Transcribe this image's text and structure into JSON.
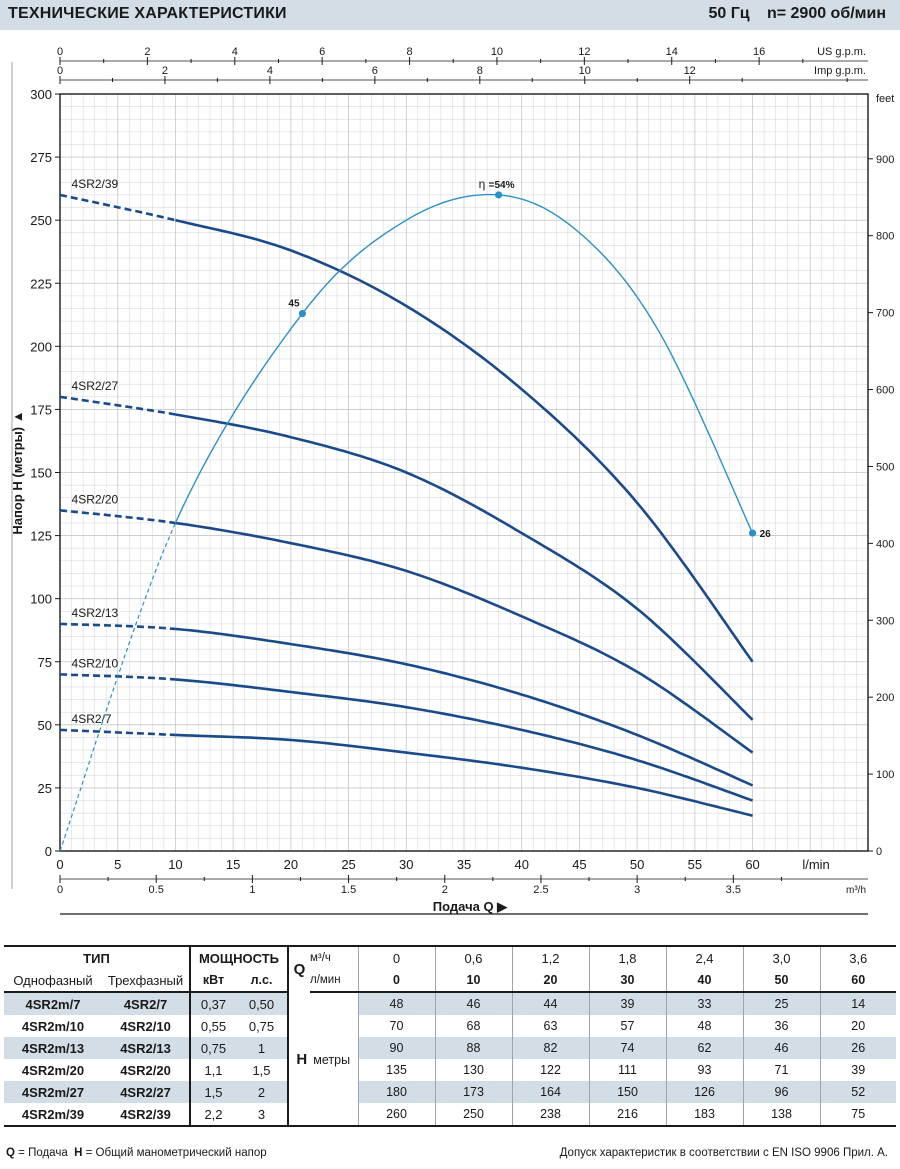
{
  "header": {
    "title": "ТЕХНИЧЕСКИЕ ХАРАКТЕРИСТИКИ",
    "frequency": "50 Гц",
    "speed": "n= 2900 об/мин"
  },
  "chart_data": {
    "type": "line",
    "title": "",
    "ylabel": "Напор Н (метры)",
    "xlabel": "Подача Q",
    "x_unit": "l/min",
    "y_right_unit": "feet",
    "xlim": [
      0,
      70
    ],
    "ylim": [
      0,
      300
    ],
    "x_ticks": [
      0,
      5,
      10,
      15,
      20,
      25,
      30,
      35,
      40,
      45,
      50,
      55,
      60
    ],
    "y_ticks": [
      0,
      25,
      50,
      75,
      100,
      125,
      150,
      175,
      200,
      225,
      250,
      275,
      300
    ],
    "feet_ticks": [
      0,
      100,
      200,
      300,
      400,
      500,
      600,
      700,
      800,
      900
    ],
    "us_gpm_label": "US g.p.m.",
    "us_gpm_ticks": [
      0,
      2,
      4,
      6,
      8,
      10,
      12,
      14,
      16
    ],
    "imp_gpm_label": "Imp g.p.m.",
    "imp_gpm_ticks": [
      0,
      2,
      4,
      6,
      8,
      10,
      12
    ],
    "m3h_unit": "m³/h",
    "m3h_ticks": [
      "0",
      "0.5",
      "1",
      "1.5",
      "2",
      "2.5",
      "3",
      "3.5"
    ],
    "grid": true,
    "series": [
      {
        "name": "4SR2/39",
        "x": [
          0,
          10,
          20,
          30,
          40,
          50,
          60
        ],
        "values": [
          260,
          250,
          238,
          216,
          183,
          138,
          75
        ]
      },
      {
        "name": "4SR2/27",
        "x": [
          0,
          10,
          20,
          30,
          40,
          50,
          60
        ],
        "values": [
          180,
          173,
          164,
          150,
          126,
          96,
          52
        ]
      },
      {
        "name": "4SR2/20",
        "x": [
          0,
          10,
          20,
          30,
          40,
          50,
          60
        ],
        "values": [
          135,
          130,
          122,
          111,
          93,
          71,
          39
        ]
      },
      {
        "name": "4SR2/13",
        "x": [
          0,
          10,
          20,
          30,
          40,
          50,
          60
        ],
        "values": [
          90,
          88,
          82,
          74,
          62,
          46,
          26
        ]
      },
      {
        "name": "4SR2/10",
        "x": [
          0,
          10,
          20,
          30,
          40,
          50,
          60
        ],
        "values": [
          70,
          68,
          63,
          57,
          48,
          36,
          20
        ]
      },
      {
        "name": "4SR2/7",
        "x": [
          0,
          10,
          20,
          30,
          40,
          50,
          60
        ],
        "values": [
          48,
          46,
          44,
          39,
          33,
          25,
          14
        ]
      }
    ],
    "efficiency": {
      "label_prefix": "η",
      "points": [
        {
          "x": 21,
          "label": "45"
        },
        {
          "x": 38,
          "label": "=54%"
        },
        {
          "x": 60,
          "label": "26"
        }
      ],
      "curve_x": [
        0,
        10,
        21,
        30,
        38,
        45,
        52,
        60
      ],
      "curve_y": [
        0,
        130,
        213,
        250,
        260,
        245,
        205,
        126
      ]
    }
  },
  "table": {
    "type_header": "ТИП",
    "power_header": "МОЩНОСТЬ",
    "single_phase": "Однофазный",
    "three_phase": "Трехфазный",
    "kw": "кВт",
    "hp": "л.с.",
    "q_label": "Q",
    "q_unit_m3h": "м³/ч",
    "q_unit_lmin": "л/мин",
    "h_label": "H",
    "h_unit": "метры",
    "q_m3h": [
      "0",
      "0,6",
      "1,2",
      "1,8",
      "2,4",
      "3,0",
      "3,6"
    ],
    "q_lmin": [
      "0",
      "10",
      "20",
      "30",
      "40",
      "50",
      "60"
    ],
    "rows": [
      {
        "single": "4SR2m/7",
        "three": "4SR2/7",
        "kw": "0,37",
        "hp": "0,50",
        "h": [
          "48",
          "46",
          "44",
          "39",
          "33",
          "25",
          "14"
        ]
      },
      {
        "single": "4SR2m/10",
        "three": "4SR2/10",
        "kw": "0,55",
        "hp": "0,75",
        "h": [
          "70",
          "68",
          "63",
          "57",
          "48",
          "36",
          "20"
        ]
      },
      {
        "single": "4SR2m/13",
        "three": "4SR2/13",
        "kw": "0,75",
        "hp": "1",
        "h": [
          "90",
          "88",
          "82",
          "74",
          "62",
          "46",
          "26"
        ]
      },
      {
        "single": "4SR2m/20",
        "three": "4SR2/20",
        "kw": "1,1",
        "hp": "1,5",
        "h": [
          "135",
          "130",
          "122",
          "111",
          "93",
          "71",
          "39"
        ]
      },
      {
        "single": "4SR2m/27",
        "three": "4SR2/27",
        "kw": "1,5",
        "hp": "2",
        "h": [
          "180",
          "173",
          "164",
          "150",
          "126",
          "96",
          "52"
        ]
      },
      {
        "single": "4SR2m/39",
        "three": "4SR2/39",
        "kw": "2,2",
        "hp": "3",
        "h": [
          "260",
          "250",
          "238",
          "216",
          "183",
          "138",
          "75"
        ]
      }
    ]
  },
  "footer": {
    "q_letter": "Q",
    "q_text": "= Подача",
    "h_letter": "H",
    "h_text": "= Общий манометрический напор",
    "tolerance": "Допуск характеристик в соответствии с EN ISO 9906 Прил. А."
  },
  "colors": {
    "pump_curve": "#1a4a8a",
    "efficiency_curve": "#2a90c8",
    "grid": "#c8c8c8",
    "header_bg": "#d3dde6"
  }
}
